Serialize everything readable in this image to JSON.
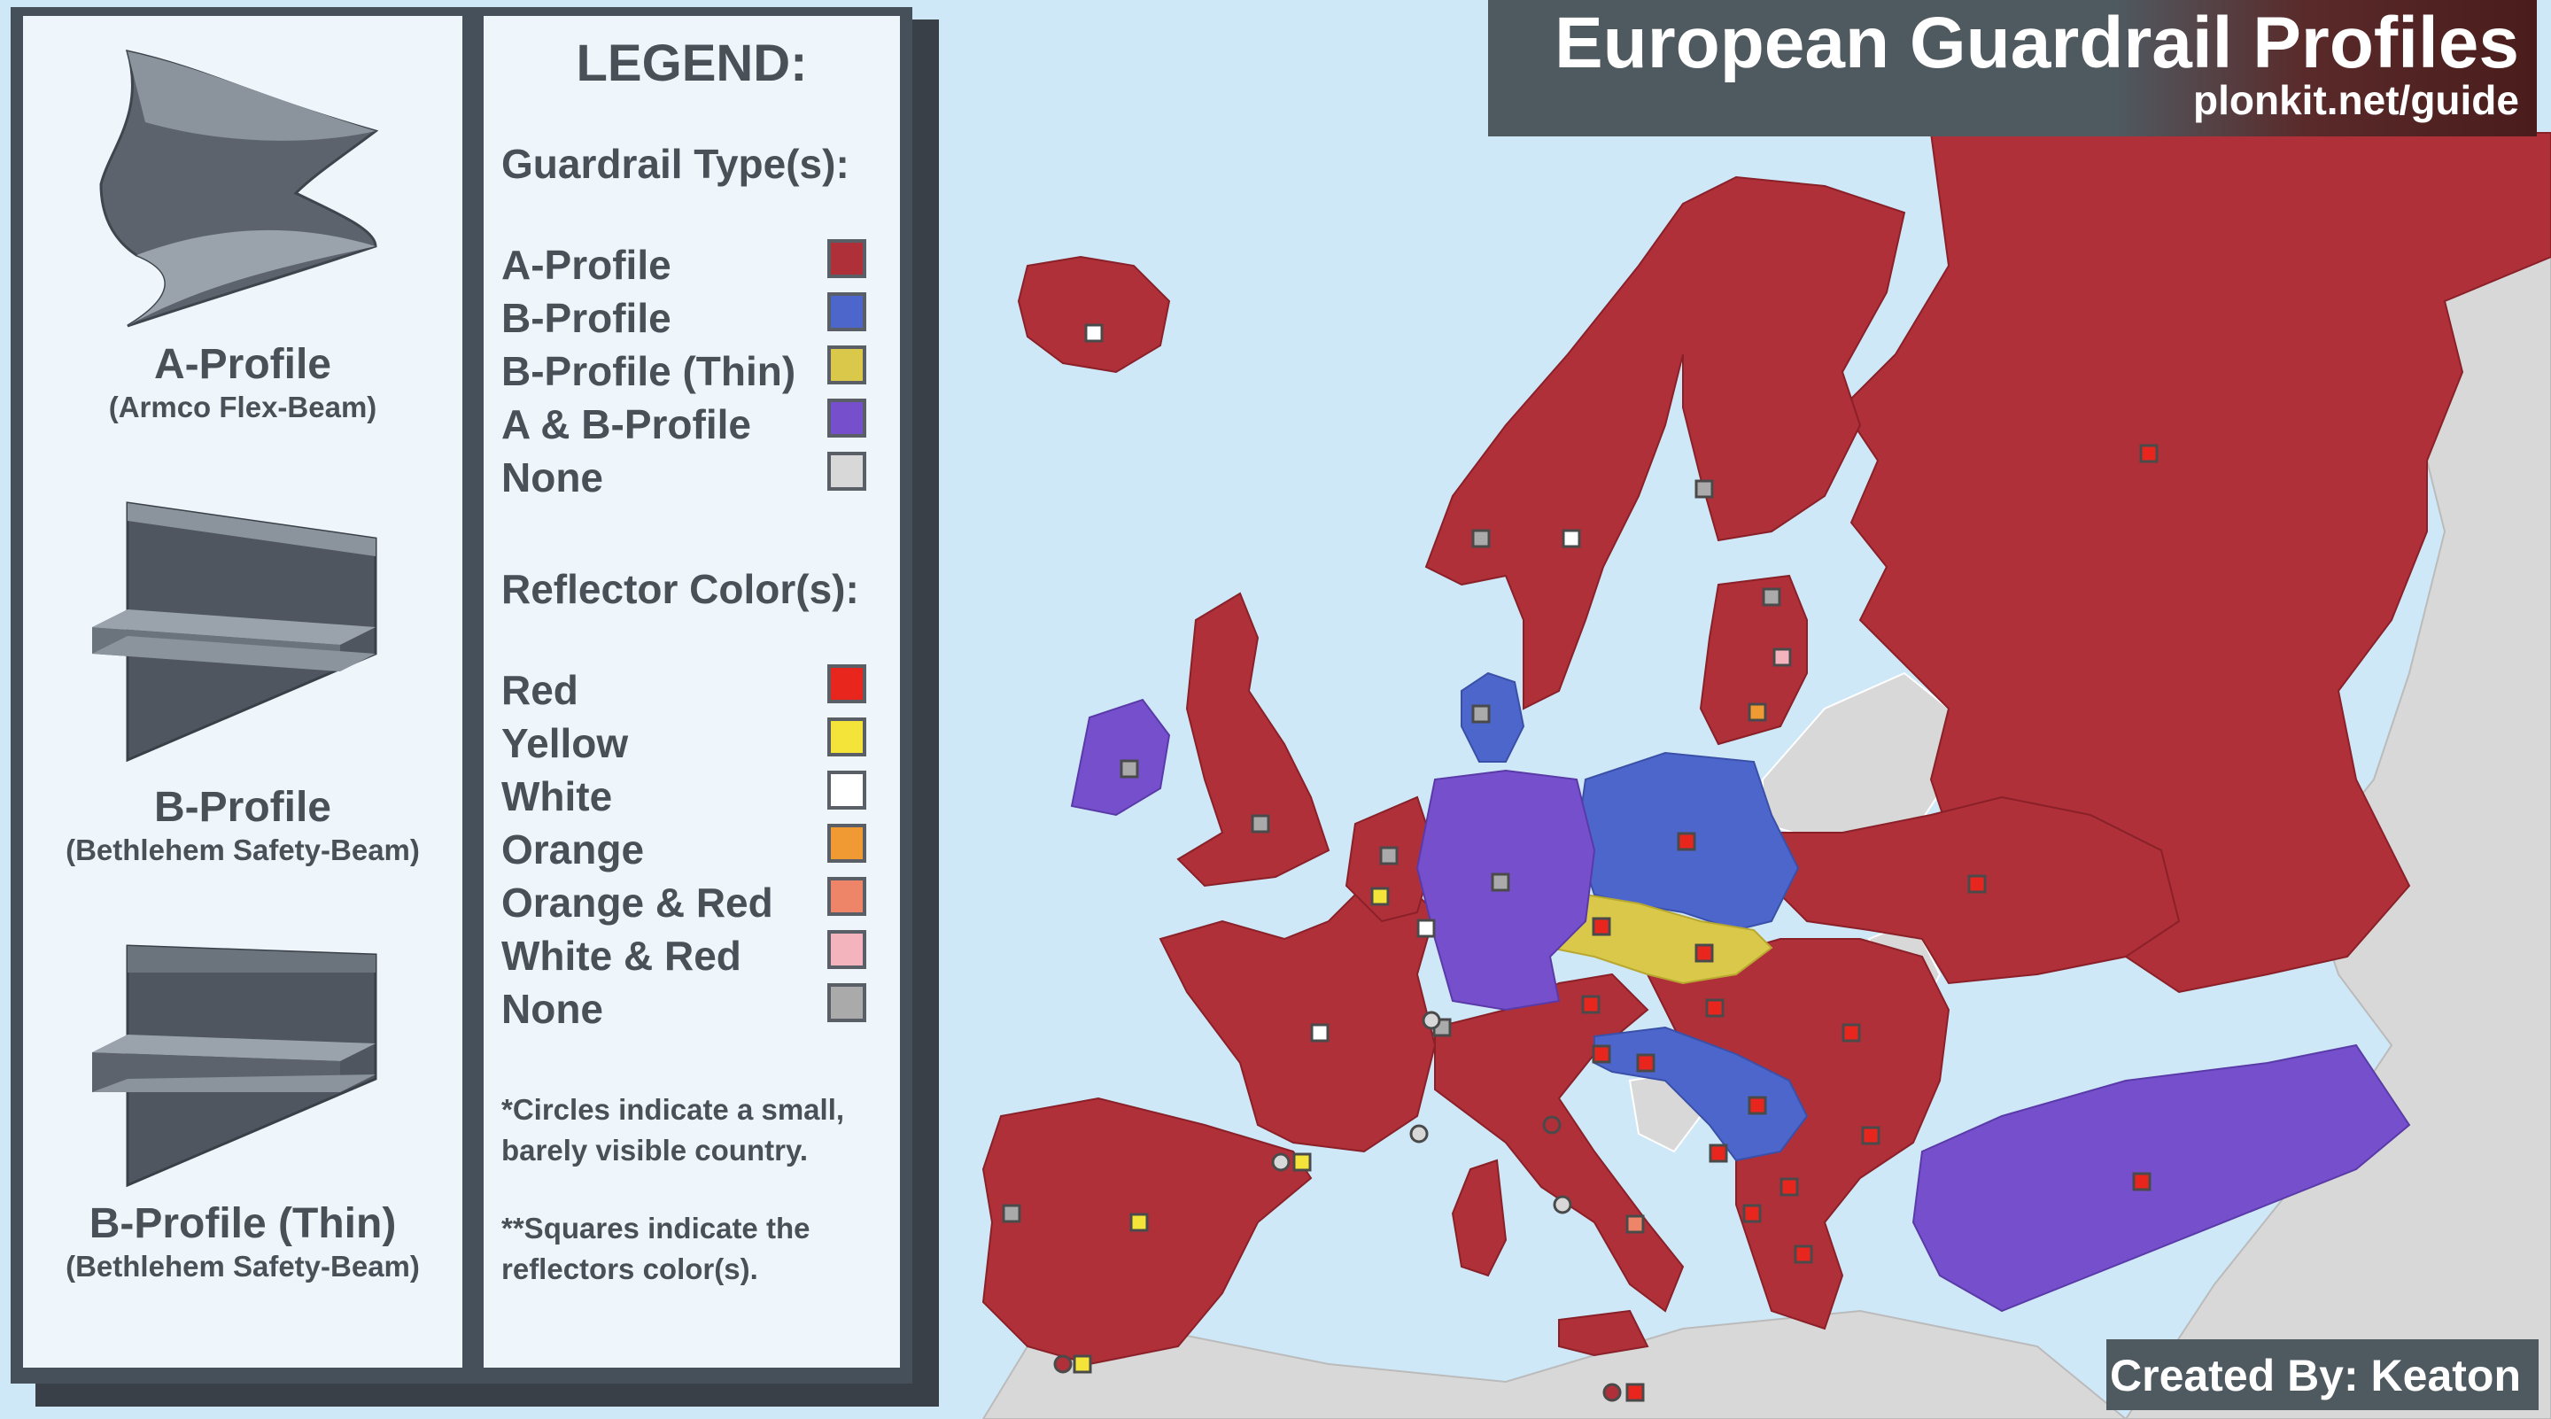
{
  "title": "European Guardrail Profiles",
  "subtitle": "plonkit.net/guide",
  "credit": "Created By: Keaton",
  "profiles": [
    {
      "name": "A-Profile",
      "sub": "(Armco Flex-Beam)"
    },
    {
      "name": "B-Profile",
      "sub": "(Bethlehem Safety-Beam)"
    },
    {
      "name": "B-Profile (Thin)",
      "sub": "(Bethlehem Safety-Beam)"
    }
  ],
  "legend": {
    "title": "LEGEND:",
    "type_heading": "Guardrail Type(s):",
    "types": [
      {
        "label": "A-Profile",
        "color": "#b0303a"
      },
      {
        "label": "B-Profile",
        "color": "#4c66cc"
      },
      {
        "label": "B-Profile (Thin)",
        "color": "#d9c84a"
      },
      {
        "label": "A & B-Profile",
        "color": "#7650cc"
      },
      {
        "label": "None",
        "color": "#d8d8d8"
      }
    ],
    "reflector_heading": "Reflector Color(s):",
    "reflectors": [
      {
        "label": "Red",
        "color": "#e8261e"
      },
      {
        "label": "Yellow",
        "color": "#f4e43a"
      },
      {
        "label": "White",
        "color": "#ffffff"
      },
      {
        "label": "Orange",
        "color": "#f09a34"
      },
      {
        "label": "Orange & Red",
        "color": "#ee8468"
      },
      {
        "label": "White & Red",
        "color": "#f4b4be"
      },
      {
        "label": "None",
        "color": "#aaaaaa"
      }
    ],
    "note1": "*Circles indicate a small, barely visible country.",
    "note2": "**Squares indicate the reflectors color(s)."
  },
  "map": {
    "colors": {
      "sea": "#cfe8f8",
      "land_other": "#d8d8d8",
      "a_profile": "#b0303a",
      "b_profile": "#4c66cc",
      "b_thin": "#d9c84a",
      "ab_profile": "#7650cc"
    },
    "countries": [
      {
        "name": "Iceland",
        "type": "A-Profile",
        "reflector": "White"
      },
      {
        "name": "Ireland",
        "type": "A & B-Profile",
        "reflector": "None"
      },
      {
        "name": "United Kingdom",
        "type": "A-Profile",
        "reflector": "None"
      },
      {
        "name": "Norway",
        "type": "A-Profile",
        "reflector": "None"
      },
      {
        "name": "Sweden",
        "type": "A-Profile",
        "reflector": "White"
      },
      {
        "name": "Finland",
        "type": "A-Profile",
        "reflector": "None"
      },
      {
        "name": "Denmark",
        "type": "B-Profile",
        "reflector": "None"
      },
      {
        "name": "Estonia",
        "type": "A-Profile",
        "reflector": "None"
      },
      {
        "name": "Latvia",
        "type": "A-Profile",
        "reflector": "White & Red"
      },
      {
        "name": "Lithuania",
        "type": "A-Profile",
        "reflector": "Orange"
      },
      {
        "name": "Belarus",
        "type": "None",
        "reflector": ""
      },
      {
        "name": "Russia",
        "type": "A-Profile",
        "reflector": "Red"
      },
      {
        "name": "Ukraine",
        "type": "A-Profile",
        "reflector": "Red"
      },
      {
        "name": "Poland",
        "type": "B-Profile",
        "reflector": "Red"
      },
      {
        "name": "Germany",
        "type": "A & B-Profile",
        "reflector": "None"
      },
      {
        "name": "Netherlands",
        "type": "A-Profile",
        "reflector": "None"
      },
      {
        "name": "Belgium",
        "type": "A-Profile",
        "reflector": "Yellow"
      },
      {
        "name": "Luxembourg",
        "type": "A-Profile",
        "reflector": "White"
      },
      {
        "name": "France",
        "type": "A-Profile",
        "reflector": "White"
      },
      {
        "name": "Switzerland",
        "type": "A-Profile",
        "reflector": "None"
      },
      {
        "name": "Czechia",
        "type": "B-Profile (Thin)",
        "reflector": "Red"
      },
      {
        "name": "Slovakia",
        "type": "B-Profile (Thin)",
        "reflector": "Red"
      },
      {
        "name": "Austria",
        "type": "A-Profile",
        "reflector": "Red"
      },
      {
        "name": "Hungary",
        "type": "A-Profile",
        "reflector": "Red"
      },
      {
        "name": "Romania",
        "type": "A-Profile",
        "reflector": "Red"
      },
      {
        "name": "Moldova",
        "type": "None",
        "reflector": ""
      },
      {
        "name": "Slovenia",
        "type": "A-Profile",
        "reflector": "Red"
      },
      {
        "name": "Croatia",
        "type": "B-Profile",
        "reflector": "Red"
      },
      {
        "name": "Bosnia and Herzegovina",
        "type": "None",
        "reflector": ""
      },
      {
        "name": "Serbia",
        "type": "B-Profile",
        "reflector": "Red"
      },
      {
        "name": "Montenegro",
        "type": "B-Profile",
        "reflector": "Red"
      },
      {
        "name": "Kosovo",
        "type": "None",
        "reflector": ""
      },
      {
        "name": "Albania",
        "type": "A-Profile",
        "reflector": "Red"
      },
      {
        "name": "North Macedonia",
        "type": "A-Profile",
        "reflector": "Red"
      },
      {
        "name": "Bulgaria",
        "type": "A-Profile",
        "reflector": "Red"
      },
      {
        "name": "Greece",
        "type": "A-Profile",
        "reflector": "Red"
      },
      {
        "name": "Turkey",
        "type": "A & B-Profile",
        "reflector": "Red"
      },
      {
        "name": "Italy",
        "type": "A-Profile",
        "reflector": "Orange & Red"
      },
      {
        "name": "Spain",
        "type": "A-Profile",
        "reflector": "Yellow"
      },
      {
        "name": "Portugal",
        "type": "A-Profile",
        "reflector": "None"
      },
      {
        "name": "Andorra",
        "type": "A-Profile",
        "reflector": "Yellow"
      },
      {
        "name": "Malta",
        "type": "A-Profile",
        "reflector": "Red"
      },
      {
        "name": "Gibraltar",
        "type": "A-Profile",
        "reflector": "Yellow"
      }
    ]
  }
}
